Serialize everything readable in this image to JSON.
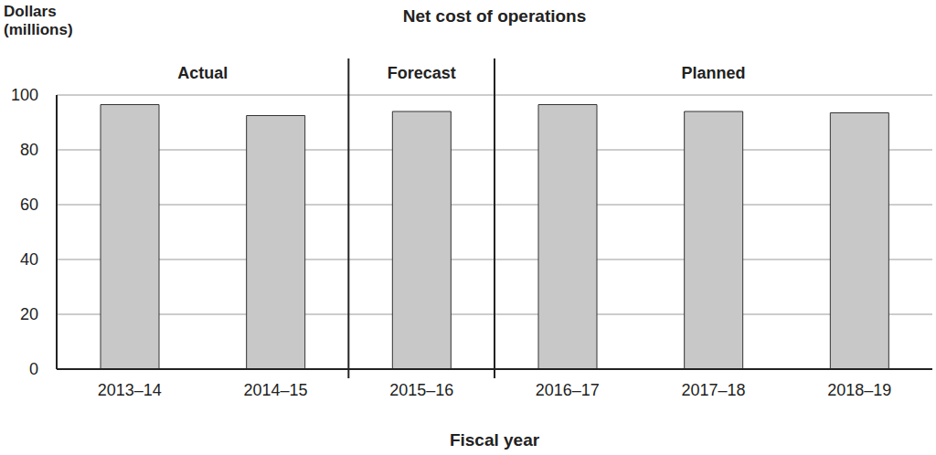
{
  "chart_data": {
    "type": "bar",
    "title": "Net cost of operations",
    "y_label": "Dollars (millions)",
    "x_label": "Fiscal year",
    "categories": [
      "2013–14",
      "2014–15",
      "2015–16",
      "2016–17",
      "2017–18",
      "2018–19"
    ],
    "values": [
      96.5,
      92.5,
      94,
      96.5,
      94,
      93.5
    ],
    "color": "#c8c8c8",
    "ylim": [
      0,
      100
    ],
    "yticks": [
      0,
      20,
      40,
      60,
      80,
      100
    ],
    "grid": true,
    "annotations": [
      {
        "text": "Actual",
        "from": "2013–14",
        "to": "2014–15"
      },
      {
        "text": "Forecast",
        "from": "2015–16",
        "to": "2015–16"
      },
      {
        "text": "Planned",
        "from": "2016–17",
        "to": "2018–19"
      }
    ]
  }
}
